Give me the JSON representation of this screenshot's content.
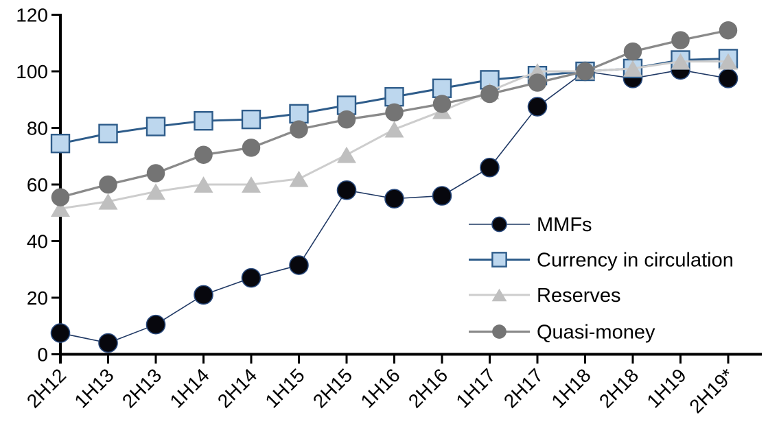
{
  "chart_data": {
    "type": "line",
    "title": "",
    "xlabel": "",
    "ylabel": "",
    "categories": [
      "2H12",
      "1H13",
      "2H13",
      "1H14",
      "2H14",
      "1H15",
      "2H15",
      "1H16",
      "2H16",
      "1H17",
      "2H17",
      "1H18",
      "2H18",
      "1H19",
      "2H19*"
    ],
    "series": [
      {
        "name": "MMFs",
        "marker": "circle",
        "values": [
          7.5,
          4,
          10.5,
          21,
          27,
          31.5,
          58,
          55,
          56,
          66,
          87.5,
          100,
          97.5,
          100.5,
          97.5
        ],
        "line_color": "#1F3864",
        "line_width": 1.6,
        "marker_fill": "#07070D",
        "marker_stroke": "#27477A",
        "marker_stroke_width": 1.6,
        "marker_size": 27
      },
      {
        "name": "Currency in circulation",
        "marker": "square",
        "values": [
          74.5,
          78,
          80.5,
          82.5,
          83,
          85,
          88,
          91,
          94,
          97,
          98.5,
          100,
          101,
          104,
          104.5
        ],
        "line_color": "#2E5C8A",
        "line_width": 3,
        "marker_fill": "#BDD7EE",
        "marker_stroke": "#2E5C8A",
        "marker_stroke_width": 2.4,
        "marker_size": 26
      },
      {
        "name": "Reserves",
        "marker": "triangle",
        "values": [
          51.5,
          54,
          57.5,
          60,
          60,
          62,
          70.5,
          79.5,
          86,
          93,
          100,
          100,
          101,
          103.5,
          103.5
        ],
        "line_color": "#CDCDCD",
        "line_width": 3,
        "marker_fill": "#BFBFBF",
        "marker_stroke": "none",
        "marker_stroke_width": 0,
        "marker_size": 28
      },
      {
        "name": "Quasi-money",
        "marker": "circle",
        "values": [
          55.5,
          60,
          64,
          70.5,
          73,
          79.5,
          83,
          85.5,
          88.5,
          92,
          96,
          100,
          107,
          111,
          114.5
        ],
        "line_color": "#8A8A8A",
        "line_width": 3.3,
        "marker_fill": "#747474",
        "marker_stroke": "none",
        "marker_stroke_width": 0,
        "marker_size": 26.5
      }
    ],
    "ylim": [
      0,
      120
    ],
    "yticks": [
      0,
      20,
      40,
      60,
      80,
      100,
      120
    ],
    "ytick_labels": [
      "0",
      "20",
      "40",
      "60",
      "80",
      "100",
      "120"
    ],
    "grid": false,
    "legend_position": "inside-right",
    "legend_items": [
      "MMFs",
      "Currency in circulation",
      "Reserves",
      "Quasi-money"
    ],
    "axis_color": "#000000",
    "label_color": "#000000"
  }
}
